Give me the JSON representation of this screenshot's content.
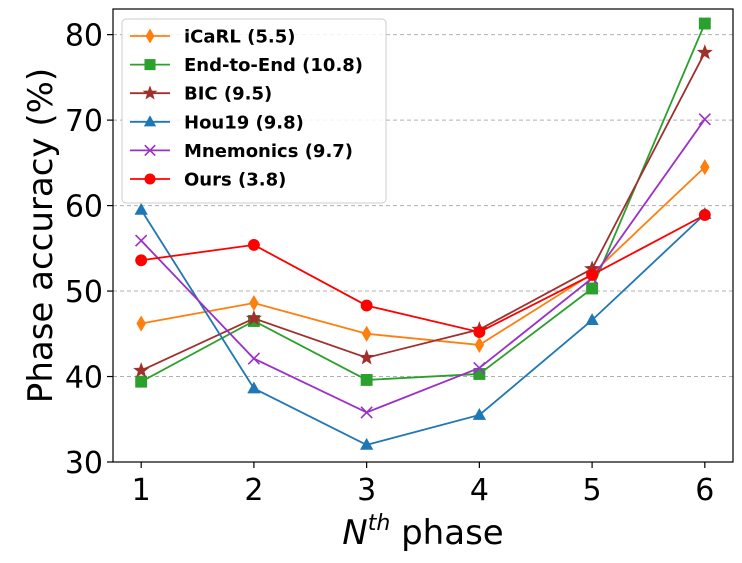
{
  "chart_data": {
    "type": "line",
    "title": "",
    "xlabel_base": "N",
    "xlabel_sup": "th",
    "xlabel_rest": " phase",
    "ylabel": "Phase accuracy (%)",
    "x": [
      1,
      2,
      3,
      4,
      5,
      6
    ],
    "xticks": [
      "1",
      "2",
      "3",
      "4",
      "5",
      "6"
    ],
    "yticks": [
      "30",
      "40",
      "50",
      "60",
      "70",
      "80"
    ],
    "xlim": [
      0.75,
      6.25
    ],
    "ylim": [
      30,
      83
    ],
    "grid": "y-dashed",
    "legend_position": "top-left",
    "series": [
      {
        "name": "iCaRL (5.5)",
        "color": "#ff7f0e",
        "marker": "diamond",
        "values": [
          46.2,
          48.6,
          45.0,
          43.7,
          52.0,
          64.5
        ]
      },
      {
        "name": "End-to-End (10.8)",
        "color": "#2ca02c",
        "marker": "square",
        "values": [
          39.4,
          46.5,
          39.6,
          40.3,
          50.3,
          81.3
        ]
      },
      {
        "name": "BIC (9.5)",
        "color": "#a0302e",
        "marker": "star",
        "values": [
          40.7,
          46.8,
          42.2,
          45.5,
          52.6,
          77.9
        ]
      },
      {
        "name": "Hou19 (9.8)",
        "color": "#1f77b4",
        "marker": "triangle",
        "values": [
          59.5,
          38.6,
          32.0,
          35.5,
          46.6,
          59.0
        ]
      },
      {
        "name": "Mnemonics (9.7)",
        "color": "#9b30c8",
        "marker": "x",
        "values": [
          55.9,
          42.1,
          35.8,
          41.0,
          51.5,
          70.1
        ]
      },
      {
        "name": "Ours (3.8)",
        "color": "#ff0000",
        "marker": "circle",
        "values": [
          53.6,
          55.4,
          48.3,
          45.2,
          51.9,
          58.9
        ]
      }
    ]
  }
}
